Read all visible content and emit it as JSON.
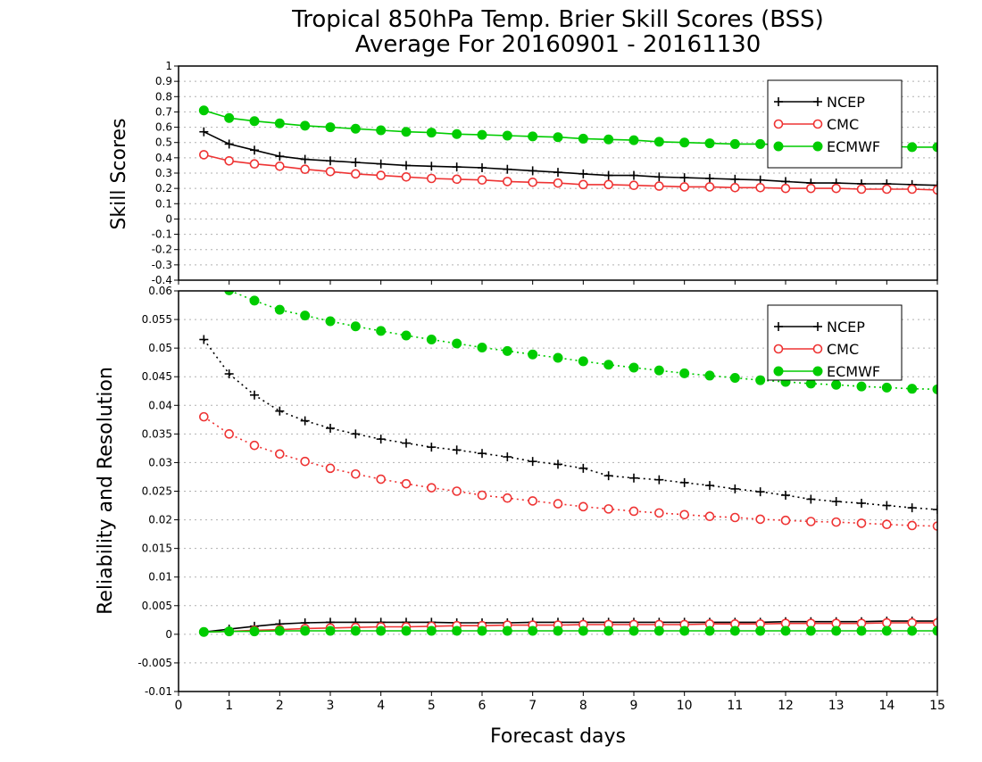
{
  "chart_data": [
    {
      "type": "line",
      "title": "Tropical 850hPa Temp. Brier Skill Scores (BSS)",
      "subtitle": "Average For 20160901 - 20161130",
      "ylabel": "Skill Scores",
      "xlabel": "",
      "xlim": [
        0,
        15
      ],
      "ylim": [
        -0.4,
        1
      ],
      "xticks": [
        "0",
        "1",
        "2",
        "3",
        "4",
        "5",
        "6",
        "7",
        "8",
        "9",
        "10",
        "11",
        "12",
        "13",
        "14",
        "15"
      ],
      "yticks": [
        "-0.4",
        "-0.3",
        "-0.2",
        "-0.1",
        "0",
        "0.1",
        "0.2",
        "0.3",
        "0.4",
        "0.5",
        "0.6",
        "0.7",
        "0.8",
        "0.9",
        "1"
      ],
      "grid": true,
      "legend_position": "top-right",
      "x": [
        0.5,
        1,
        1.5,
        2,
        2.5,
        3,
        3.5,
        4,
        4.5,
        5,
        5.5,
        6,
        6.5,
        7,
        7.5,
        8,
        8.5,
        9,
        9.5,
        10,
        10.5,
        11,
        11.5,
        12,
        12.5,
        13,
        13.5,
        14,
        14.5,
        15
      ],
      "series": [
        {
          "name": "NCEP",
          "color": "#000000",
          "marker": "plus",
          "line": "solid",
          "values": [
            0.57,
            0.49,
            0.45,
            0.41,
            0.39,
            0.38,
            0.37,
            0.36,
            0.35,
            0.345,
            0.34,
            0.335,
            0.325,
            0.315,
            0.305,
            0.295,
            0.285,
            0.285,
            0.275,
            0.27,
            0.265,
            0.26,
            0.255,
            0.245,
            0.235,
            0.235,
            0.23,
            0.23,
            0.225,
            0.22
          ]
        },
        {
          "name": "CMC",
          "color": "#ee3333",
          "marker": "open-circle",
          "line": "solid",
          "values": [
            0.42,
            0.38,
            0.36,
            0.345,
            0.325,
            0.31,
            0.295,
            0.285,
            0.275,
            0.265,
            0.26,
            0.255,
            0.245,
            0.24,
            0.235,
            0.225,
            0.225,
            0.22,
            0.215,
            0.21,
            0.21,
            0.205,
            0.205,
            0.2,
            0.2,
            0.2,
            0.195,
            0.195,
            0.195,
            0.19
          ]
        },
        {
          "name": "ECMWF",
          "color": "#00cc00",
          "marker": "filled-circle",
          "line": "solid",
          "values": [
            0.71,
            0.66,
            0.64,
            0.625,
            0.61,
            0.6,
            0.59,
            0.58,
            0.57,
            0.565,
            0.555,
            0.55,
            0.545,
            0.54,
            0.535,
            0.525,
            0.52,
            0.515,
            0.505,
            0.5,
            0.495,
            0.49,
            0.49,
            0.485,
            0.48,
            0.48,
            0.475,
            0.475,
            0.47,
            0.47
          ]
        }
      ]
    },
    {
      "type": "line",
      "title": "",
      "ylabel": "Reliability and Resolution",
      "xlabel": "Forecast days",
      "xlim": [
        0,
        15
      ],
      "ylim": [
        -0.01,
        0.06
      ],
      "xticks": [
        "0",
        "1",
        "2",
        "3",
        "4",
        "5",
        "6",
        "7",
        "8",
        "9",
        "10",
        "11",
        "12",
        "13",
        "14",
        "15"
      ],
      "yticks": [
        "-0.01",
        "-0.005",
        "0",
        "0.005",
        "0.01",
        "0.015",
        "0.02",
        "0.025",
        "0.03",
        "0.035",
        "0.04",
        "0.045",
        "0.05",
        "0.055",
        "0.06"
      ],
      "grid": true,
      "legend_position": "top-right",
      "x": [
        0.5,
        1,
        1.5,
        2,
        2.5,
        3,
        3.5,
        4,
        4.5,
        5,
        5.5,
        6,
        6.5,
        7,
        7.5,
        8,
        8.5,
        9,
        9.5,
        10,
        10.5,
        11,
        11.5,
        12,
        12.5,
        13,
        13.5,
        14,
        14.5,
        15
      ],
      "series": [
        {
          "name": "NCEP",
          "color": "#000000",
          "marker": "plus",
          "line": "dotted",
          "values": [
            0.0515,
            0.0455,
            0.0418,
            0.039,
            0.0373,
            0.036,
            0.035,
            0.0341,
            0.0334,
            0.0327,
            0.0322,
            0.0316,
            0.031,
            0.0302,
            0.0297,
            0.029,
            0.0277,
            0.0273,
            0.027,
            0.0265,
            0.026,
            0.0254,
            0.0249,
            0.0243,
            0.0236,
            0.0232,
            0.0229,
            0.0225,
            0.0221,
            0.0218
          ]
        },
        {
          "name": "CMC",
          "color": "#ee3333",
          "marker": "open-circle",
          "line": "dotted",
          "values": [
            0.038,
            0.035,
            0.033,
            0.0315,
            0.0302,
            0.029,
            0.028,
            0.0271,
            0.0263,
            0.0256,
            0.025,
            0.0243,
            0.0238,
            0.0233,
            0.0228,
            0.0223,
            0.0219,
            0.0215,
            0.0212,
            0.0209,
            0.0206,
            0.0204,
            0.0201,
            0.0199,
            0.0197,
            0.0196,
            0.0194,
            0.0192,
            0.019,
            0.0189
          ]
        },
        {
          "name": "ECMWF",
          "color": "#00cc00",
          "marker": "filled-circle",
          "line": "dotted",
          "values": [
            0.0612,
            0.0601,
            0.0583,
            0.0567,
            0.0557,
            0.0547,
            0.0538,
            0.053,
            0.0522,
            0.0515,
            0.0508,
            0.0501,
            0.0495,
            0.0489,
            0.0483,
            0.0477,
            0.0471,
            0.0466,
            0.0461,
            0.0456,
            0.0452,
            0.0448,
            0.0444,
            0.0441,
            0.0438,
            0.0436,
            0.0433,
            0.0431,
            0.0429,
            0.0428
          ]
        },
        {
          "name": "",
          "color": "#000000",
          "marker": "plus",
          "line": "solid",
          "values": [
            0.0004,
            0.0009,
            0.0014,
            0.0018,
            0.002,
            0.0021,
            0.0021,
            0.0021,
            0.0021,
            0.0021,
            0.002,
            0.002,
            0.002,
            0.0021,
            0.0021,
            0.0021,
            0.0021,
            0.0021,
            0.0021,
            0.0021,
            0.0021,
            0.0021,
            0.0021,
            0.0022,
            0.0022,
            0.0022,
            0.0022,
            0.0023,
            0.0023,
            0.0023
          ]
        },
        {
          "name": "",
          "color": "#ee3333",
          "marker": "open-circle",
          "line": "solid",
          "values": [
            0.0004,
            0.0005,
            0.0007,
            0.0008,
            0.001,
            0.0011,
            0.0012,
            0.0013,
            0.0013,
            0.0014,
            0.0015,
            0.0015,
            0.0016,
            0.0016,
            0.0016,
            0.0017,
            0.0017,
            0.0017,
            0.0017,
            0.0017,
            0.0018,
            0.0018,
            0.0018,
            0.0019,
            0.0019,
            0.0019,
            0.0019,
            0.002,
            0.002,
            0.002
          ]
        },
        {
          "name": "",
          "color": "#00cc00",
          "marker": "filled-circle",
          "line": "solid",
          "values": [
            0.0004,
            0.0005,
            0.0005,
            0.0006,
            0.0006,
            0.0006,
            0.0006,
            0.0006,
            0.0006,
            0.0006,
            0.0006,
            0.0006,
            0.0006,
            0.0006,
            0.0006,
            0.0006,
            0.0006,
            0.0006,
            0.0006,
            0.0006,
            0.0006,
            0.0006,
            0.0006,
            0.0006,
            0.0006,
            0.0006,
            0.0006,
            0.0006,
            0.0006,
            0.0006
          ]
        }
      ]
    }
  ]
}
